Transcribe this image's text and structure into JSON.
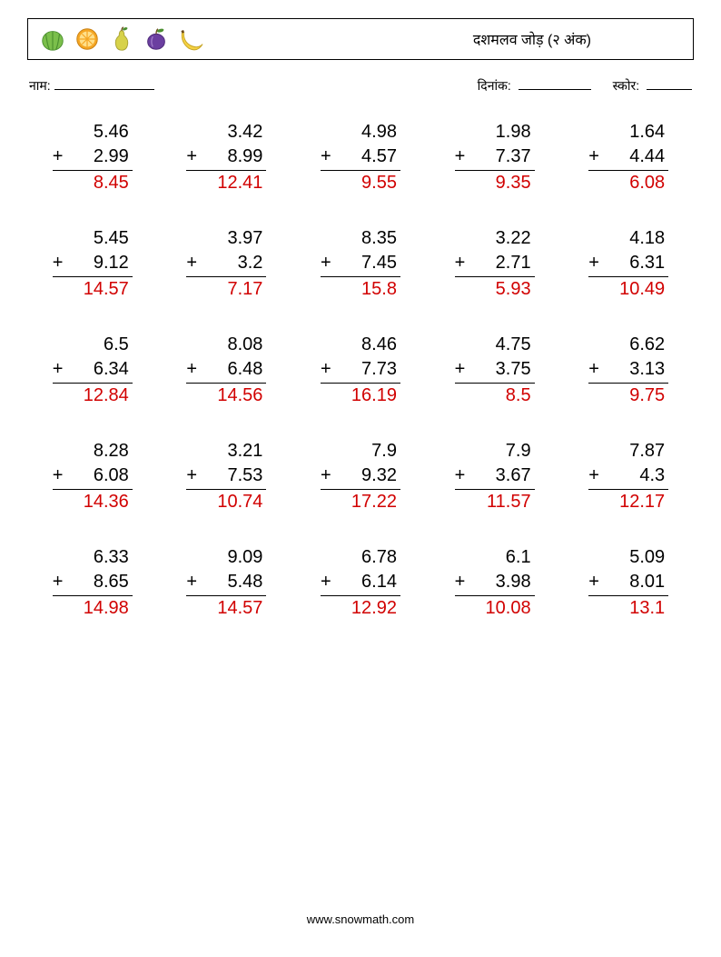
{
  "header": {
    "title": "दशमलव जोड़ (२ अंक)"
  },
  "info": {
    "name_label": "नाम:",
    "date_label": "दिनांक:",
    "score_label": "स्कोर:"
  },
  "style": {
    "answer_color": "#d10000",
    "text_color": "#000000",
    "background": "#ffffff",
    "border_color": "#000000",
    "font_family": "Arial",
    "title_fontsize": 16,
    "info_fontsize": 14,
    "problem_fontsize": 20,
    "columns": 5,
    "rows": 5
  },
  "fruit_icons": [
    {
      "name": "watermelon-icon",
      "fill": "#7bbf4b",
      "stripe": "#4b8f2f"
    },
    {
      "name": "orange-icon",
      "fill": "#f5a623",
      "inner": "#ffe08a"
    },
    {
      "name": "pear-icon",
      "fill": "#d7d24a",
      "leaf": "#4b8f2f"
    },
    {
      "name": "plum-icon",
      "fill": "#6b3fa0",
      "leaf": "#4b8f2f"
    },
    {
      "name": "banana-icon",
      "fill": "#f5d142",
      "tip": "#6b4a1b"
    }
  ],
  "problems": [
    [
      {
        "a": "5.46",
        "b": "2.99",
        "ans": "8.45"
      },
      {
        "a": "3.42",
        "b": "8.99",
        "ans": "12.41"
      },
      {
        "a": "4.98",
        "b": "4.57",
        "ans": "9.55"
      },
      {
        "a": "1.98",
        "b": "7.37",
        "ans": "9.35"
      },
      {
        "a": "1.64",
        "b": "4.44",
        "ans": "6.08"
      }
    ],
    [
      {
        "a": "5.45",
        "b": "9.12",
        "ans": "14.57"
      },
      {
        "a": "3.97",
        "b": "3.2",
        "ans": "7.17"
      },
      {
        "a": "8.35",
        "b": "7.45",
        "ans": "15.8"
      },
      {
        "a": "3.22",
        "b": "2.71",
        "ans": "5.93"
      },
      {
        "a": "4.18",
        "b": "6.31",
        "ans": "10.49"
      }
    ],
    [
      {
        "a": "6.5",
        "b": "6.34",
        "ans": "12.84"
      },
      {
        "a": "8.08",
        "b": "6.48",
        "ans": "14.56"
      },
      {
        "a": "8.46",
        "b": "7.73",
        "ans": "16.19"
      },
      {
        "a": "4.75",
        "b": "3.75",
        "ans": "8.5"
      },
      {
        "a": "6.62",
        "b": "3.13",
        "ans": "9.75"
      }
    ],
    [
      {
        "a": "8.28",
        "b": "6.08",
        "ans": "14.36"
      },
      {
        "a": "3.21",
        "b": "7.53",
        "ans": "10.74"
      },
      {
        "a": "7.9",
        "b": "9.32",
        "ans": "17.22"
      },
      {
        "a": "7.9",
        "b": "3.67",
        "ans": "11.57"
      },
      {
        "a": "7.87",
        "b": "4.3",
        "ans": "12.17"
      }
    ],
    [
      {
        "a": "6.33",
        "b": "8.65",
        "ans": "14.98"
      },
      {
        "a": "9.09",
        "b": "5.48",
        "ans": "14.57"
      },
      {
        "a": "6.78",
        "b": "6.14",
        "ans": "12.92"
      },
      {
        "a": "6.1",
        "b": "3.98",
        "ans": "10.08"
      },
      {
        "a": "5.09",
        "b": "8.01",
        "ans": "13.1"
      }
    ]
  ],
  "footer": {
    "url": "www.snowmath.com"
  }
}
